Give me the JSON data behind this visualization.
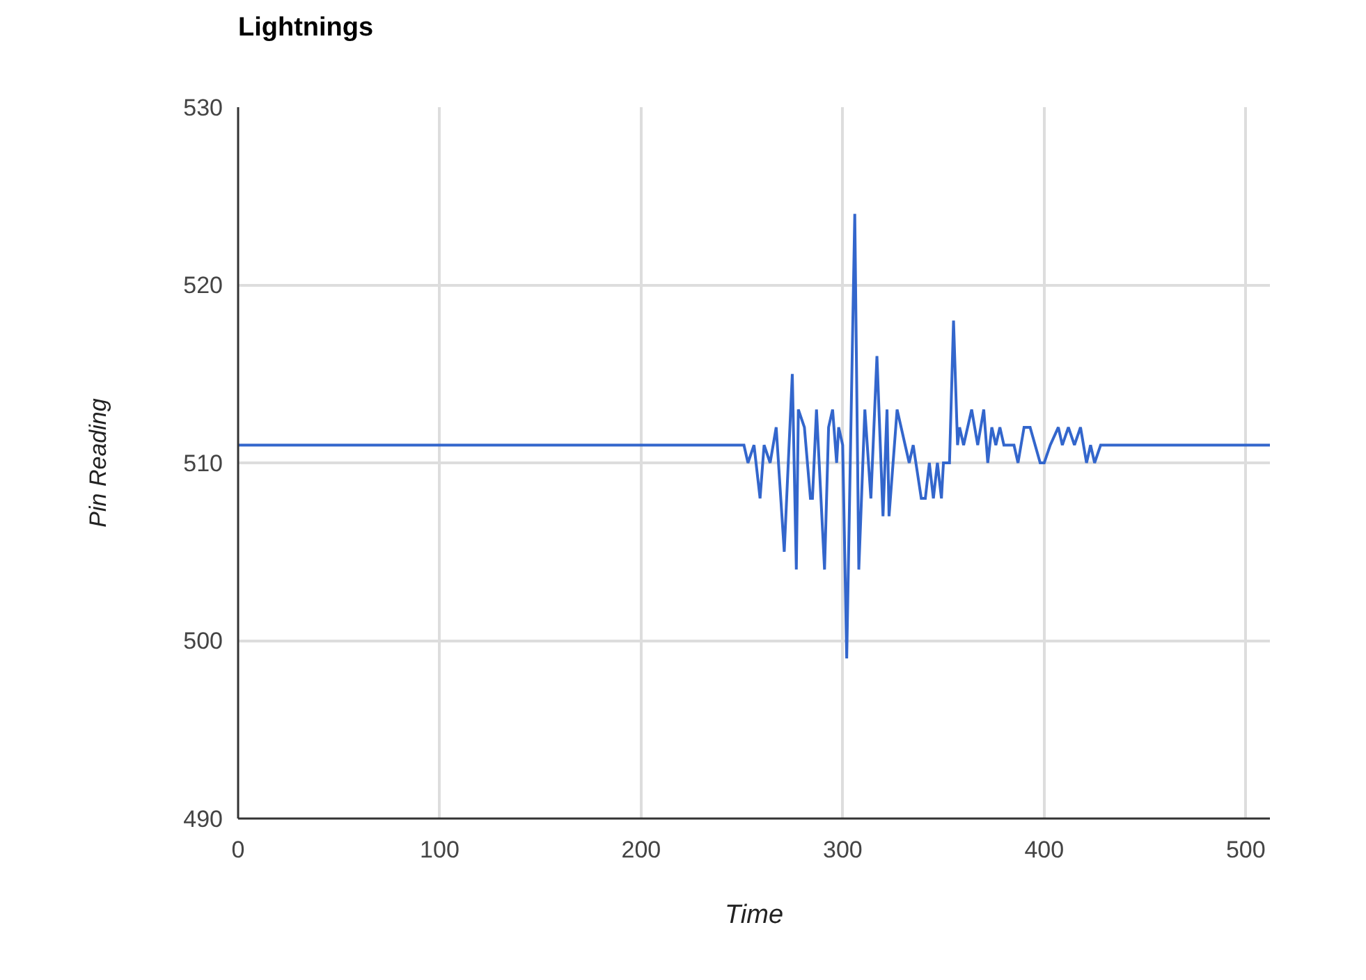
{
  "chart_data": {
    "type": "line",
    "title": "Lightnings",
    "xlabel": "Time",
    "ylabel": "Pin Reading",
    "xlim": [
      0,
      512
    ],
    "ylim": [
      490,
      530
    ],
    "xticks": [
      0,
      100,
      200,
      300,
      400,
      500
    ],
    "yticks": [
      490,
      500,
      510,
      520,
      530
    ],
    "grid": true,
    "marker": "none",
    "line_style": "solid",
    "series": [
      {
        "color": "#3366cc",
        "x": [
          0,
          251,
          253,
          256,
          259,
          261,
          264,
          267,
          271,
          275,
          277,
          278,
          281,
          284,
          285,
          287,
          291,
          293,
          295,
          297,
          298,
          300,
          302,
          306,
          308,
          311,
          314,
          317,
          320,
          322,
          323,
          327,
          331,
          333,
          335,
          339,
          341,
          343,
          345,
          347,
          349,
          350,
          353,
          355,
          357,
          358,
          360,
          364,
          367,
          370,
          372,
          374,
          376,
          378,
          380,
          385,
          387,
          390,
          393,
          398,
          400,
          403,
          407,
          409,
          412,
          415,
          418,
          421,
          423,
          425,
          428,
          512
        ],
        "values": [
          511,
          511,
          510,
          511,
          508,
          511,
          510,
          512,
          505,
          515,
          504,
          513,
          512,
          508,
          508,
          513,
          504,
          512,
          513,
          510,
          512,
          511,
          499,
          524,
          504,
          513,
          508,
          516,
          507,
          513,
          507,
          513,
          511,
          510,
          511,
          508,
          508,
          510,
          508,
          510,
          508,
          510,
          510,
          518,
          511,
          512,
          511,
          513,
          511,
          513,
          510,
          512,
          511,
          512,
          511,
          511,
          510,
          512,
          512,
          510,
          510,
          511,
          512,
          511,
          512,
          511,
          512,
          510,
          511,
          510,
          511,
          511
        ]
      }
    ]
  }
}
